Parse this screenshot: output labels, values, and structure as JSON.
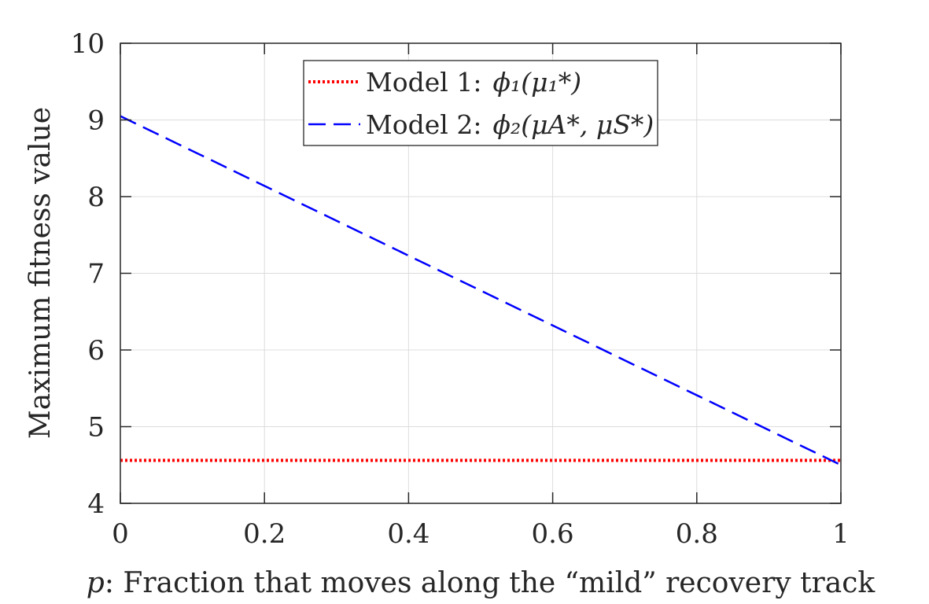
{
  "chart_data": {
    "type": "line",
    "title": "",
    "xlabel_var": "p",
    "xlabel_rest": ": Fraction that moves along the “mild” recovery track",
    "ylabel": "Maximum fitness value",
    "xlim": [
      0,
      1
    ],
    "ylim": [
      4,
      10
    ],
    "xticks": [
      0,
      0.2,
      0.4,
      0.6,
      0.8,
      1
    ],
    "xtick_labels": [
      "0",
      "0.2",
      "0.4",
      "0.6",
      "0.8",
      "1"
    ],
    "yticks": [
      4,
      5,
      6,
      7,
      8,
      9,
      10
    ],
    "ytick_labels": [
      "4",
      "5",
      "6",
      "7",
      "8",
      "9",
      "10"
    ],
    "grid": true,
    "legend_position": "top-center",
    "series": [
      {
        "name": "Model 1: ϕ₁(μ₁*)",
        "legend_label": "Model 1:",
        "legend_math": "ϕ₁(μ₁*)",
        "color": "#ff0000",
        "style": "dotted",
        "x": [
          0,
          1
        ],
        "y": [
          4.56,
          4.56
        ]
      },
      {
        "name": "Model 2: ϕ₂(μA*, μS*)",
        "legend_label": "Model 2:",
        "legend_math": "ϕ₂(μA*, μS*)",
        "color": "#0000ff",
        "style": "dashed",
        "x": [
          0,
          1
        ],
        "y": [
          9.05,
          4.5
        ]
      }
    ]
  }
}
